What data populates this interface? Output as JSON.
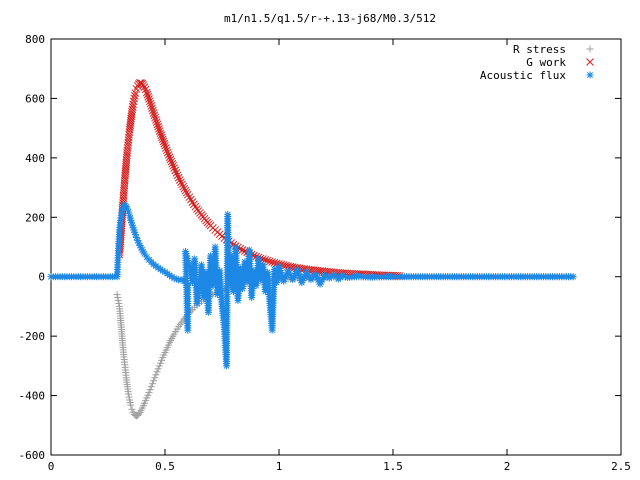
{
  "chart_data": {
    "type": "scatter",
    "title": "m1/n1.5/q1.5/r-+.13-j68/M0.3/512",
    "xlim": [
      0,
      2.5
    ],
    "ylim": [
      -600,
      800
    ],
    "x_ticks": [
      0,
      0.5,
      1,
      1.5,
      2,
      2.5
    ],
    "x_tick_labels": [
      "0",
      "0.5",
      "1",
      "1.5",
      "2",
      "2.5"
    ],
    "y_ticks": [
      -600,
      -400,
      -200,
      0,
      200,
      400,
      600,
      800
    ],
    "y_tick_labels": [
      "-600",
      "-400",
      "-200",
      "0",
      "200",
      "400",
      "600",
      "800"
    ],
    "grid": false,
    "legend": "top-right",
    "series": [
      {
        "name": "R stress",
        "marker": "plus",
        "color": "#a0a0a0",
        "points": [
          [
            0.29,
            -60
          ],
          [
            0.295,
            -80
          ],
          [
            0.3,
            -100
          ],
          [
            0.305,
            -140
          ],
          [
            0.31,
            -185
          ],
          [
            0.315,
            -230
          ],
          [
            0.32,
            -270
          ],
          [
            0.325,
            -305
          ],
          [
            0.33,
            -340
          ],
          [
            0.335,
            -370
          ],
          [
            0.34,
            -395
          ],
          [
            0.345,
            -415
          ],
          [
            0.35,
            -432
          ],
          [
            0.355,
            -446
          ],
          [
            0.36,
            -456
          ],
          [
            0.365,
            -463
          ],
          [
            0.37,
            -467
          ],
          [
            0.375,
            -468
          ],
          [
            0.38,
            -467
          ],
          [
            0.385,
            -463
          ],
          [
            0.39,
            -457
          ],
          [
            0.395,
            -450
          ],
          [
            0.4,
            -442
          ],
          [
            0.41,
            -426
          ],
          [
            0.42,
            -408
          ],
          [
            0.43,
            -390
          ],
          [
            0.44,
            -370
          ],
          [
            0.45,
            -350
          ],
          [
            0.46,
            -330
          ],
          [
            0.47,
            -310
          ],
          [
            0.48,
            -291
          ],
          [
            0.49,
            -272
          ],
          [
            0.5,
            -255
          ],
          [
            0.52,
            -222
          ],
          [
            0.54,
            -193
          ],
          [
            0.56,
            -168
          ],
          [
            0.58,
            -146
          ],
          [
            0.6,
            -127
          ],
          [
            0.62,
            -110
          ],
          [
            0.64,
            -96
          ],
          [
            0.66,
            -84
          ],
          [
            0.68,
            -73
          ],
          [
            0.7,
            -64
          ],
          [
            0.72,
            -56
          ],
          [
            0.74,
            -49
          ],
          [
            0.76,
            -43
          ],
          [
            0.78,
            -37
          ],
          [
            0.8,
            -33
          ],
          [
            0.83,
            -27
          ],
          [
            0.86,
            -22
          ],
          [
            0.89,
            -18
          ],
          [
            0.92,
            -15
          ],
          [
            0.95,
            -12
          ],
          [
            0.98,
            -10
          ],
          [
            1.01,
            -8
          ],
          [
            1.05,
            -6
          ],
          [
            1.1,
            -4
          ],
          [
            1.15,
            -3
          ],
          [
            1.2,
            -2
          ],
          [
            1.3,
            -1
          ],
          [
            1.4,
            -1
          ],
          [
            1.5,
            0
          ],
          [
            1.6,
            0
          ],
          [
            1.7,
            0
          ],
          [
            1.8,
            0
          ],
          [
            1.9,
            0
          ],
          [
            2.0,
            0
          ],
          [
            2.1,
            0
          ],
          [
            2.2,
            0
          ],
          [
            2.29,
            0
          ]
        ]
      },
      {
        "name": "G work",
        "marker": "cross",
        "color": "#d62020",
        "points": [
          [
            0.3,
            75
          ],
          [
            0.305,
            120
          ],
          [
            0.31,
            180
          ],
          [
            0.315,
            240
          ],
          [
            0.32,
            290
          ],
          [
            0.325,
            340
          ],
          [
            0.33,
            385
          ],
          [
            0.335,
            425
          ],
          [
            0.34,
            460
          ],
          [
            0.345,
            495
          ],
          [
            0.35,
            525
          ],
          [
            0.355,
            555
          ],
          [
            0.36,
            580
          ],
          [
            0.365,
            600
          ],
          [
            0.37,
            618
          ],
          [
            0.375,
            632
          ],
          [
            0.38,
            642
          ],
          [
            0.385,
            648
          ],
          [
            0.39,
            652
          ],
          [
            0.395,
            652
          ],
          [
            0.4,
            650
          ],
          [
            0.405,
            645
          ],
          [
            0.41,
            638
          ],
          [
            0.415,
            630
          ],
          [
            0.42,
            620
          ],
          [
            0.43,
            598
          ],
          [
            0.44,
            575
          ],
          [
            0.45,
            551
          ],
          [
            0.46,
            528
          ],
          [
            0.47,
            505
          ],
          [
            0.48,
            483
          ],
          [
            0.49,
            462
          ],
          [
            0.5,
            441
          ],
          [
            0.52,
            402
          ],
          [
            0.54,
            366
          ],
          [
            0.56,
            333
          ],
          [
            0.58,
            303
          ],
          [
            0.6,
            276
          ],
          [
            0.62,
            251
          ],
          [
            0.64,
            228
          ],
          [
            0.66,
            208
          ],
          [
            0.68,
            189
          ],
          [
            0.7,
            172
          ],
          [
            0.72,
            157
          ],
          [
            0.74,
            143
          ],
          [
            0.76,
            130
          ],
          [
            0.78,
            119
          ],
          [
            0.8,
            108
          ],
          [
            0.83,
            94
          ],
          [
            0.86,
            82
          ],
          [
            0.89,
            71
          ],
          [
            0.92,
            62
          ],
          [
            0.95,
            54
          ],
          [
            0.98,
            47
          ],
          [
            1.01,
            41
          ],
          [
            1.05,
            34
          ],
          [
            1.1,
            27
          ],
          [
            1.15,
            22
          ],
          [
            1.2,
            18
          ],
          [
            1.25,
            14
          ],
          [
            1.3,
            11
          ],
          [
            1.35,
            9
          ],
          [
            1.4,
            7
          ],
          [
            1.45,
            5
          ],
          [
            1.5,
            4
          ],
          [
            1.53,
            3
          ]
        ]
      },
      {
        "name": "Acoustic flux",
        "marker": "star",
        "color": "#1e88e5",
        "points": [
          [
            0.0,
            0
          ],
          [
            0.03,
            0
          ],
          [
            0.06,
            0
          ],
          [
            0.09,
            0
          ],
          [
            0.12,
            0
          ],
          [
            0.15,
            0
          ],
          [
            0.18,
            0
          ],
          [
            0.21,
            0
          ],
          [
            0.24,
            0
          ],
          [
            0.27,
            0
          ],
          [
            0.29,
            0
          ],
          [
            0.295,
            80
          ],
          [
            0.3,
            150
          ],
          [
            0.305,
            190
          ],
          [
            0.31,
            215
          ],
          [
            0.315,
            232
          ],
          [
            0.32,
            240
          ],
          [
            0.325,
            240
          ],
          [
            0.33,
            236
          ],
          [
            0.335,
            228
          ],
          [
            0.34,
            218
          ],
          [
            0.345,
            205
          ],
          [
            0.35,
            190
          ],
          [
            0.36,
            165
          ],
          [
            0.37,
            142
          ],
          [
            0.38,
            122
          ],
          [
            0.39,
            105
          ],
          [
            0.4,
            90
          ],
          [
            0.41,
            77
          ],
          [
            0.42,
            66
          ],
          [
            0.43,
            57
          ],
          [
            0.44,
            49
          ],
          [
            0.45,
            42
          ],
          [
            0.46,
            36
          ],
          [
            0.47,
            30
          ],
          [
            0.48,
            25
          ],
          [
            0.49,
            20
          ],
          [
            0.5,
            16
          ],
          [
            0.51,
            10
          ],
          [
            0.52,
            5
          ],
          [
            0.53,
            0
          ],
          [
            0.54,
            -5
          ],
          [
            0.55,
            -8
          ],
          [
            0.56,
            -10
          ],
          [
            0.57,
            -12
          ],
          [
            0.58,
            -8
          ],
          [
            0.6,
            -30
          ],
          [
            0.6,
            -180
          ],
          [
            0.59,
            85
          ],
          [
            0.61,
            25
          ],
          [
            0.62,
            -20
          ],
          [
            0.63,
            60
          ],
          [
            0.64,
            -90
          ],
          [
            0.65,
            -40
          ],
          [
            0.66,
            40
          ],
          [
            0.67,
            -70
          ],
          [
            0.68,
            15
          ],
          [
            0.69,
            -120
          ],
          [
            0.7,
            70
          ],
          [
            0.71,
            -30
          ],
          [
            0.72,
            100
          ],
          [
            0.73,
            -60
          ],
          [
            0.74,
            20
          ],
          [
            0.75,
            -100
          ],
          [
            0.76,
            -170
          ],
          [
            0.77,
            -300
          ],
          [
            0.775,
            210
          ],
          [
            0.78,
            -25
          ],
          [
            0.79,
            70
          ],
          [
            0.8,
            -50
          ],
          [
            0.81,
            100
          ],
          [
            0.82,
            -80
          ],
          [
            0.83,
            30
          ],
          [
            0.84,
            -40
          ],
          [
            0.85,
            50
          ],
          [
            0.86,
            -15
          ],
          [
            0.87,
            90
          ],
          [
            0.88,
            -70
          ],
          [
            0.89,
            20
          ],
          [
            0.9,
            -30
          ],
          [
            0.91,
            60
          ],
          [
            0.92,
            -10
          ],
          [
            0.93,
            40
          ],
          [
            0.94,
            -50
          ],
          [
            0.95,
            15
          ],
          [
            0.96,
            -90
          ],
          [
            0.97,
            -180
          ],
          [
            0.98,
            25
          ],
          [
            0.99,
            -20
          ],
          [
            1.0,
            35
          ],
          [
            1.02,
            -15
          ],
          [
            1.04,
            20
          ],
          [
            1.06,
            -10
          ],
          [
            1.08,
            25
          ],
          [
            1.1,
            -20
          ],
          [
            1.12,
            15
          ],
          [
            1.14,
            -10
          ],
          [
            1.16,
            10
          ],
          [
            1.18,
            -25
          ],
          [
            1.2,
            5
          ],
          [
            1.22,
            -5
          ],
          [
            1.24,
            8
          ],
          [
            1.26,
            -8
          ],
          [
            1.28,
            4
          ],
          [
            1.3,
            -3
          ],
          [
            1.35,
            2
          ],
          [
            1.4,
            -2
          ],
          [
            1.45,
            0
          ],
          [
            1.5,
            0
          ],
          [
            1.6,
            0
          ],
          [
            1.7,
            0
          ],
          [
            1.8,
            0
          ],
          [
            1.9,
            0
          ],
          [
            2.0,
            0
          ],
          [
            2.1,
            0
          ],
          [
            2.2,
            0
          ],
          [
            2.29,
            0
          ]
        ]
      }
    ]
  }
}
